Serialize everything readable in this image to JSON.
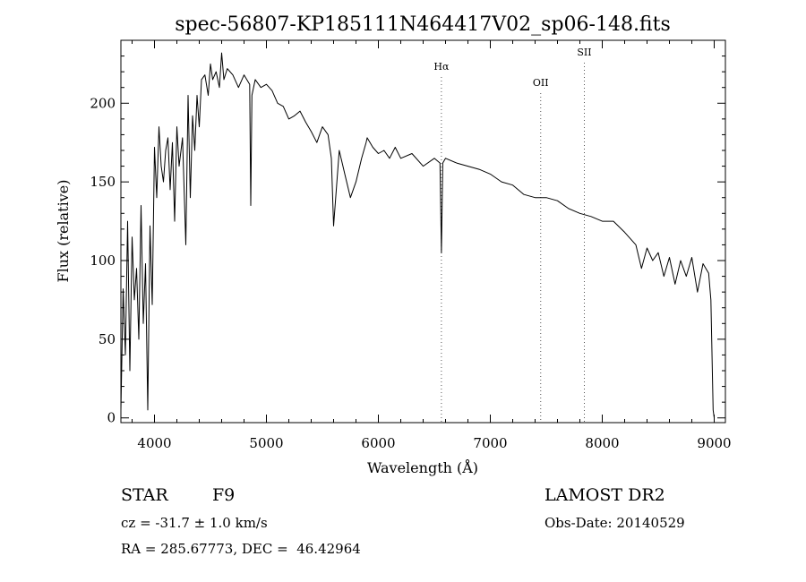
{
  "chart_data": {
    "type": "line",
    "title": "spec-56807-KP185111N464417V02_sp06-148.fits",
    "xlabel": "Wavelength (Å)",
    "ylabel": "Flux (relative)",
    "xlim": [
      3700,
      9100
    ],
    "ylim": [
      -3,
      240
    ],
    "x_ticks": [
      4000,
      5000,
      6000,
      7000,
      8000,
      9000
    ],
    "y_ticks": [
      0,
      50,
      100,
      150,
      200
    ],
    "grid": false,
    "line_color": "#000000",
    "series": [
      {
        "x": [
          3700,
          3720,
          3740,
          3760,
          3780,
          3800,
          3820,
          3840,
          3860,
          3880,
          3900,
          3920,
          3940,
          3960,
          3980,
          4000,
          4020,
          4040,
          4060,
          4080,
          4100,
          4120,
          4140,
          4160,
          4180,
          4200,
          4220,
          4250,
          4280,
          4300,
          4320,
          4340,
          4360,
          4380,
          4400,
          4420,
          4450,
          4480,
          4500,
          4520,
          4550,
          4580,
          4600,
          4620,
          4650,
          4700,
          4750,
          4800,
          4850,
          4860,
          4870,
          4900,
          4950,
          5000,
          5050,
          5100,
          5150,
          5200,
          5250,
          5300,
          5350,
          5400,
          5450,
          5500,
          5550,
          5580,
          5600,
          5650,
          5700,
          5750,
          5800,
          5850,
          5890,
          5900,
          5950,
          6000,
          6050,
          6100,
          6150,
          6200,
          6300,
          6400,
          6500,
          6550,
          6563,
          6575,
          6600,
          6700,
          6800,
          6900,
          7000,
          7100,
          7200,
          7300,
          7400,
          7500,
          7600,
          7700,
          7800,
          7900,
          8000,
          8100,
          8200,
          8300,
          8350,
          8400,
          8450,
          8500,
          8550,
          8600,
          8650,
          8700,
          8750,
          8800,
          8850,
          8900,
          8950,
          8970,
          8990,
          9000
        ],
        "values": [
          5,
          82,
          40,
          125,
          30,
          115,
          75,
          95,
          50,
          135,
          60,
          98,
          5,
          122,
          72,
          172,
          140,
          185,
          160,
          150,
          170,
          178,
          145,
          175,
          125,
          185,
          160,
          178,
          110,
          205,
          140,
          192,
          170,
          205,
          185,
          215,
          218,
          205,
          225,
          215,
          220,
          210,
          232,
          215,
          222,
          218,
          210,
          218,
          212,
          135,
          205,
          215,
          210,
          212,
          208,
          200,
          198,
          190,
          192,
          195,
          188,
          182,
          175,
          185,
          180,
          165,
          122,
          170,
          155,
          140,
          150,
          165,
          175,
          178,
          172,
          168,
          170,
          165,
          172,
          165,
          168,
          160,
          165,
          162,
          105,
          162,
          165,
          162,
          160,
          158,
          155,
          150,
          148,
          142,
          140,
          140,
          138,
          133,
          130,
          128,
          125,
          125,
          118,
          110,
          95,
          108,
          100,
          105,
          90,
          102,
          85,
          100,
          90,
          102,
          80,
          98,
          92,
          75,
          5,
          0
        ],
        "values_note": "",
        "name": ""
      }
    ],
    "annotations": [
      {
        "label": "Hα",
        "x": 6563
      },
      {
        "label": "OII",
        "x": 7450
      },
      {
        "label": "SII",
        "x": 7840
      }
    ]
  },
  "info": {
    "object_class": "STAR",
    "subclass": "F9",
    "survey": "LAMOST DR2",
    "cz": "cz = -31.7 ± 1.0 km/s",
    "obs_date": "Obs-Date: 20140529",
    "coords": "RA = 285.67773, DEC =  46.42964"
  }
}
